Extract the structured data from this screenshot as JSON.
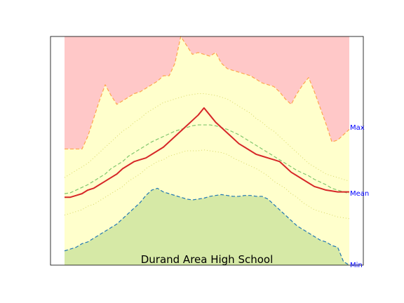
{
  "chart_data": {
    "type": "area",
    "title": "Durand Area High School",
    "xlabel": "",
    "ylabel": "",
    "axes_ticks_visible": false,
    "grid": false,
    "xlim": [
      0,
      49
    ],
    "ylim": [
      -0.05,
      1.23
    ],
    "right_labels": [
      {
        "text": "Max",
        "y": 0.72,
        "color": "#0000ff"
      },
      {
        "text": "Mean",
        "y": 0.35,
        "color": "#0000ff"
      },
      {
        "text": "Min",
        "y": -0.05,
        "color": "#0000ff"
      }
    ],
    "x": [
      0,
      1,
      2,
      3,
      4,
      5,
      6,
      7,
      8,
      9,
      10,
      11,
      12,
      13,
      14,
      15,
      16,
      17,
      18,
      19,
      20,
      21,
      22,
      23,
      24,
      25,
      26,
      27,
      28,
      29,
      30,
      31,
      32,
      33,
      34,
      35,
      36,
      37,
      38,
      39,
      40,
      41,
      42,
      43,
      44,
      45,
      46,
      47,
      48,
      49
    ],
    "series": [
      {
        "role": "max",
        "color": "#ffa64d",
        "fill": "#ffc8c8",
        "values": [
          0.6,
          0.6,
          0.6,
          0.6,
          0.67,
          0.77,
          0.87,
          0.96,
          0.9,
          0.85,
          0.87,
          0.89,
          0.91,
          0.92,
          0.94,
          0.96,
          0.98,
          1.01,
          1.01,
          1.08,
          1.23,
          1.18,
          1.13,
          1.14,
          1.13,
          1.12,
          1.14,
          1.08,
          1.05,
          1.04,
          1.03,
          1.02,
          1.01,
          0.99,
          0.97,
          0.96,
          0.95,
          0.92,
          0.88,
          0.85,
          0.91,
          0.96,
          1.0,
          0.92,
          0.83,
          0.74,
          0.64,
          0.65,
          0.68,
          0.71
        ]
      },
      {
        "role": "mean",
        "color": "#2ca02c",
        "values": [
          0.35,
          0.355,
          0.37,
          0.385,
          0.4,
          0.42,
          0.44,
          0.46,
          0.49,
          0.51,
          0.53,
          0.56,
          0.58,
          0.6,
          0.62,
          0.64,
          0.655,
          0.67,
          0.685,
          0.7,
          0.71,
          0.72,
          0.73,
          0.735,
          0.735,
          0.735,
          0.73,
          0.72,
          0.71,
          0.695,
          0.68,
          0.66,
          0.64,
          0.62,
          0.6,
          0.58,
          0.56,
          0.54,
          0.52,
          0.5,
          0.48,
          0.465,
          0.45,
          0.43,
          0.415,
          0.4,
          0.38,
          0.37,
          0.36,
          0.35
        ]
      },
      {
        "role": "upper",
        "color": "#bcbd22",
        "values": [
          0.44,
          0.46,
          0.48,
          0.5,
          0.52,
          0.55,
          0.58,
          0.61,
          0.64,
          0.67,
          0.7,
          0.72,
          0.75,
          0.77,
          0.8,
          0.82,
          0.84,
          0.86,
          0.87,
          0.88,
          0.89,
          0.9,
          0.905,
          0.91,
          0.91,
          0.905,
          0.9,
          0.89,
          0.88,
          0.86,
          0.84,
          0.82,
          0.8,
          0.77,
          0.75,
          0.72,
          0.7,
          0.67,
          0.64,
          0.61,
          0.58,
          0.55,
          0.52,
          0.5,
          0.48,
          0.46,
          0.45,
          0.44,
          0.43,
          0.42
        ]
      },
      {
        "role": "lower",
        "color": "#bcbd22",
        "values": [
          0.23,
          0.24,
          0.25,
          0.26,
          0.28,
          0.29,
          0.31,
          0.33,
          0.35,
          0.37,
          0.39,
          0.42,
          0.44,
          0.46,
          0.49,
          0.51,
          0.53,
          0.54,
          0.56,
          0.57,
          0.58,
          0.59,
          0.59,
          0.59,
          0.595,
          0.59,
          0.585,
          0.58,
          0.57,
          0.55,
          0.535,
          0.52,
          0.505,
          0.49,
          0.47,
          0.45,
          0.42,
          0.4,
          0.38,
          0.35,
          0.33,
          0.3,
          0.28,
          0.26,
          0.25,
          0.24,
          0.23,
          0.22,
          0.215,
          0.21
        ]
      },
      {
        "role": "current",
        "color": "#d62728",
        "values": [
          0.33,
          0.33,
          0.34,
          0.35,
          0.37,
          0.38,
          0.4,
          0.42,
          0.44,
          0.46,
          0.49,
          0.51,
          0.53,
          0.54,
          0.55,
          0.57,
          0.59,
          0.61,
          0.64,
          0.67,
          0.7,
          0.73,
          0.76,
          0.79,
          0.83,
          0.79,
          0.75,
          0.72,
          0.69,
          0.66,
          0.63,
          0.61,
          0.59,
          0.57,
          0.56,
          0.55,
          0.54,
          0.53,
          0.5,
          0.47,
          0.45,
          0.43,
          0.41,
          0.39,
          0.38,
          0.37,
          0.365,
          0.36,
          0.36,
          0.36
        ]
      },
      {
        "role": "min",
        "color": "#1f77b4",
        "fill": "#d6e9a6",
        "values": [
          0.03,
          0.04,
          0.05,
          0.07,
          0.08,
          0.1,
          0.12,
          0.14,
          0.16,
          0.18,
          0.21,
          0.24,
          0.27,
          0.3,
          0.34,
          0.37,
          0.38,
          0.36,
          0.35,
          0.34,
          0.33,
          0.32,
          0.315,
          0.32,
          0.325,
          0.335,
          0.34,
          0.345,
          0.34,
          0.335,
          0.335,
          0.34,
          0.34,
          0.335,
          0.335,
          0.32,
          0.29,
          0.26,
          0.23,
          0.2,
          0.17,
          0.15,
          0.13,
          0.11,
          0.09,
          0.08,
          0.06,
          0.05,
          -0.03,
          -0.05
        ]
      }
    ]
  }
}
